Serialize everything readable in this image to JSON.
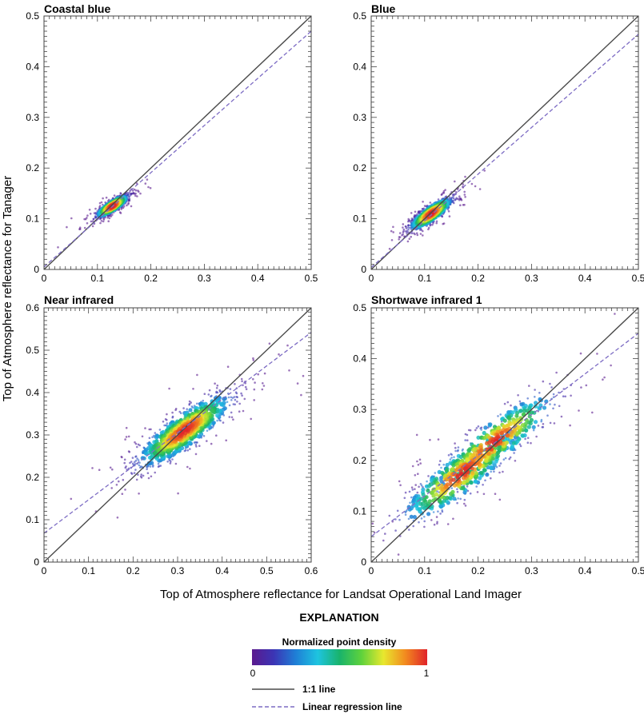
{
  "figure": {
    "ylabel": "Top of Atmosphere reflectance for Tanager",
    "xlabel": "Top of Atmosphere reflectance for Landsat Operational Land Imager"
  },
  "chart_data": [
    {
      "type": "scatter",
      "title": "Coastal blue",
      "xlim": [
        0,
        0.5
      ],
      "ylim": [
        0,
        0.5
      ],
      "xticks": [
        "0",
        "0.1",
        "0.2",
        "0.3",
        "0.4",
        "0.5"
      ],
      "yticks": [
        "0",
        "0.1",
        "0.2",
        "0.3",
        "0.4",
        "0.5"
      ],
      "density_center": [
        0.128,
        0.125
      ],
      "spread": [
        0.015,
        0.011
      ],
      "correlation": 0.85,
      "regression": {
        "intercept": 0.005,
        "slope": 0.93
      },
      "one_to_one": true,
      "grid": false
    },
    {
      "type": "scatter",
      "title": "Blue",
      "xlim": [
        0,
        0.5
      ],
      "ylim": [
        0,
        0.5
      ],
      "xticks": [
        "0",
        "0.1",
        "0.2",
        "0.3",
        "0.4",
        "0.5"
      ],
      "yticks": [
        "0",
        "0.1",
        "0.2",
        "0.3",
        "0.4",
        "0.5"
      ],
      "density_center": [
        0.112,
        0.11
      ],
      "spread": [
        0.02,
        0.016
      ],
      "correlation": 0.85,
      "regression": {
        "intercept": 0.004,
        "slope": 0.92
      },
      "one_to_one": true,
      "grid": false
    },
    {
      "type": "scatter",
      "title": "Near infrared",
      "xlim": [
        0,
        0.6
      ],
      "ylim": [
        0,
        0.6
      ],
      "xticks": [
        "0",
        "0.1",
        "0.2",
        "0.3",
        "0.4",
        "0.5",
        "0.6"
      ],
      "yticks": [
        "0",
        "0.1",
        "0.2",
        "0.3",
        "0.4",
        "0.5",
        "0.6"
      ],
      "density_center": [
        0.315,
        0.31
      ],
      "spread": [
        0.055,
        0.045
      ],
      "correlation": 0.85,
      "regression": {
        "intercept": 0.068,
        "slope": 0.79
      },
      "one_to_one": true,
      "grid": false
    },
    {
      "type": "scatter",
      "title": "Shortwave infrared 1",
      "xlim": [
        0,
        0.5
      ],
      "ylim": [
        0,
        0.5
      ],
      "xticks": [
        "0",
        "0.1",
        "0.2",
        "0.3",
        "0.4",
        "0.5"
      ],
      "yticks": [
        "0",
        "0.1",
        "0.2",
        "0.3",
        "0.4",
        "0.5"
      ],
      "density_center": [
        0.17,
        0.175
      ],
      "peak2": [
        0.23,
        0.235
      ],
      "spread": [
        0.058,
        0.05
      ],
      "correlation": 0.87,
      "regression": {
        "intercept": 0.05,
        "slope": 0.8
      },
      "one_to_one": true,
      "grid": false
    }
  ],
  "explanation": {
    "title": "EXPLANATION",
    "colorbar_title": "Normalized point density",
    "colorbar_min": "0",
    "colorbar_max": "1",
    "colormap": [
      "#5b1a8e",
      "#3b35b5",
      "#1f7fd6",
      "#1ec4e0",
      "#19b36b",
      "#5fd23c",
      "#e8e82e",
      "#f28a1f",
      "#e0232a"
    ],
    "legend": [
      {
        "label": "1:1 line",
        "color": "#4a4a4a",
        "style": "solid"
      },
      {
        "label": "Linear regression line",
        "color": "#7d6cc4",
        "style": "dashed"
      }
    ]
  }
}
